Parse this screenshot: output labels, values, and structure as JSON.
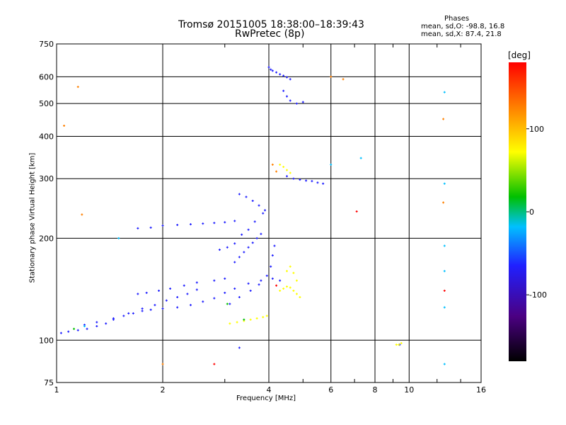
{
  "header": {
    "title": "Tromsø 20151005 18:38:00–18:39:43",
    "subtitle": "RwPretec (8p)",
    "phases_title": "Phases",
    "phases_o": "mean, sd,O: -98.8, 16.8",
    "phases_x": "mean, sd,X:  87.4, 21.8"
  },
  "chart_data": {
    "type": "scatter",
    "xlabel": "Frequency [MHz]",
    "ylabel": "Stationary phase Virtual Height [km]",
    "x_scale": "log",
    "y_scale": "log",
    "xlim": [
      1,
      16
    ],
    "ylim": [
      75,
      750
    ],
    "x_ticks": [
      1,
      2,
      4,
      6,
      8,
      10,
      16
    ],
    "y_ticks": [
      75,
      100,
      200,
      300,
      400,
      500,
      600,
      750
    ],
    "grid": true,
    "colorbar": {
      "label": "[deg]",
      "range": [
        -180,
        180
      ],
      "ticks": [
        100,
        0,
        -100
      ]
    },
    "series": [
      {
        "color": "#2020ff",
        "points": [
          [
            1.03,
            105
          ],
          [
            1.08,
            106
          ],
          [
            1.15,
            107
          ],
          [
            1.22,
            108
          ],
          [
            1.3,
            110
          ],
          [
            1.38,
            112
          ],
          [
            1.45,
            115
          ],
          [
            1.55,
            118
          ],
          [
            1.65,
            120
          ],
          [
            1.75,
            122
          ],
          [
            1.85,
            123
          ],
          [
            2.0,
            124
          ],
          [
            2.2,
            125
          ],
          [
            2.4,
            127
          ],
          [
            2.6,
            130
          ],
          [
            2.8,
            133
          ],
          [
            3.0,
            138
          ],
          [
            3.2,
            142
          ],
          [
            3.5,
            147
          ],
          [
            3.8,
            150
          ],
          [
            4.1,
            152
          ],
          [
            4.3,
            150
          ],
          [
            1.7,
            137
          ],
          [
            1.8,
            138
          ],
          [
            1.95,
            140
          ],
          [
            2.1,
            142
          ],
          [
            2.3,
            145
          ],
          [
            2.5,
            148
          ],
          [
            2.8,
            150
          ],
          [
            3.0,
            152
          ],
          [
            1.7,
            214
          ],
          [
            1.85,
            215
          ],
          [
            2.0,
            218
          ],
          [
            2.2,
            219
          ],
          [
            2.4,
            220
          ],
          [
            2.6,
            221
          ],
          [
            2.8,
            222
          ],
          [
            3.0,
            223
          ],
          [
            3.2,
            225
          ],
          [
            1.2,
            111
          ],
          [
            1.3,
            113
          ],
          [
            1.45,
            116
          ],
          [
            1.6,
            120
          ],
          [
            1.75,
            124
          ],
          [
            1.9,
            127
          ],
          [
            2.05,
            131
          ],
          [
            2.2,
            134
          ],
          [
            2.35,
            137
          ],
          [
            2.5,
            141
          ],
          [
            2.9,
            185
          ],
          [
            3.05,
            188
          ],
          [
            3.2,
            193
          ],
          [
            3.35,
            205
          ],
          [
            3.5,
            212
          ],
          [
            3.65,
            224
          ],
          [
            3.85,
            237
          ],
          [
            3.1,
            128
          ],
          [
            3.3,
            134
          ],
          [
            3.55,
            140
          ],
          [
            3.75,
            146
          ],
          [
            3.95,
            155
          ],
          [
            4.05,
            165
          ],
          [
            4.1,
            178
          ],
          [
            4.15,
            190
          ],
          [
            3.2,
            170
          ],
          [
            3.3,
            176
          ],
          [
            3.4,
            182
          ],
          [
            3.5,
            188
          ],
          [
            3.6,
            194
          ],
          [
            3.7,
            200
          ],
          [
            3.8,
            206
          ],
          [
            3.3,
            270
          ],
          [
            3.45,
            265
          ],
          [
            3.6,
            258
          ],
          [
            3.75,
            250
          ],
          [
            3.9,
            242
          ],
          [
            4.0,
            640
          ],
          [
            4.05,
            630
          ],
          [
            4.1,
            625
          ],
          [
            4.2,
            618
          ],
          [
            4.3,
            610
          ],
          [
            4.4,
            604
          ],
          [
            4.5,
            598
          ],
          [
            4.6,
            590
          ],
          [
            4.4,
            545
          ],
          [
            4.5,
            525
          ],
          [
            4.6,
            510
          ],
          [
            4.8,
            500
          ],
          [
            5.0,
            505
          ],
          [
            4.5,
            305
          ],
          [
            4.7,
            300
          ],
          [
            4.9,
            298
          ],
          [
            5.1,
            296
          ],
          [
            5.3,
            295
          ],
          [
            5.5,
            292
          ],
          [
            5.7,
            290
          ],
          [
            3.3,
            95
          ],
          [
            9.4,
            97
          ]
        ]
      },
      {
        "color": "#ffff00",
        "points": [
          [
            3.1,
            112
          ],
          [
            3.25,
            113
          ],
          [
            3.4,
            114
          ],
          [
            3.55,
            115
          ],
          [
            3.7,
            116
          ],
          [
            3.85,
            117
          ],
          [
            3.95,
            118
          ],
          [
            4.3,
            140
          ],
          [
            4.4,
            142
          ],
          [
            4.5,
            144
          ],
          [
            4.6,
            143
          ],
          [
            4.7,
            140
          ],
          [
            4.8,
            137
          ],
          [
            4.9,
            134
          ],
          [
            4.3,
            330
          ],
          [
            4.4,
            325
          ],
          [
            4.5,
            318
          ],
          [
            4.6,
            312
          ],
          [
            4.5,
            160
          ],
          [
            4.6,
            165
          ],
          [
            4.7,
            158
          ],
          [
            4.8,
            150
          ],
          [
            9.2,
            97
          ],
          [
            9.35,
            97
          ],
          [
            9.5,
            98
          ]
        ]
      },
      {
        "color": "#ff8000",
        "points": [
          [
            1.15,
            560
          ],
          [
            1.18,
            235
          ],
          [
            1.05,
            430
          ],
          [
            2.0,
            85
          ],
          [
            4.1,
            330
          ],
          [
            4.2,
            315
          ],
          [
            6.0,
            600
          ],
          [
            6.5,
            590
          ],
          [
            12.5,
            450
          ],
          [
            12.5,
            255
          ]
        ]
      },
      {
        "color": "#00c0ff",
        "points": [
          [
            1.2,
            110
          ],
          [
            1.5,
            200
          ],
          [
            12.6,
            540
          ],
          [
            12.6,
            290
          ],
          [
            12.6,
            190
          ],
          [
            12.6,
            160
          ],
          [
            12.6,
            125
          ],
          [
            12.6,
            85
          ],
          [
            6.0,
            330
          ],
          [
            7.3,
            345
          ]
        ]
      },
      {
        "color": "#00c000",
        "points": [
          [
            1.12,
            108
          ],
          [
            3.05,
            128
          ],
          [
            3.4,
            115
          ]
        ]
      },
      {
        "color": "#ff0000",
        "points": [
          [
            2.8,
            85
          ],
          [
            4.2,
            145
          ],
          [
            12.6,
            140
          ],
          [
            7.1,
            240
          ]
        ]
      }
    ]
  }
}
